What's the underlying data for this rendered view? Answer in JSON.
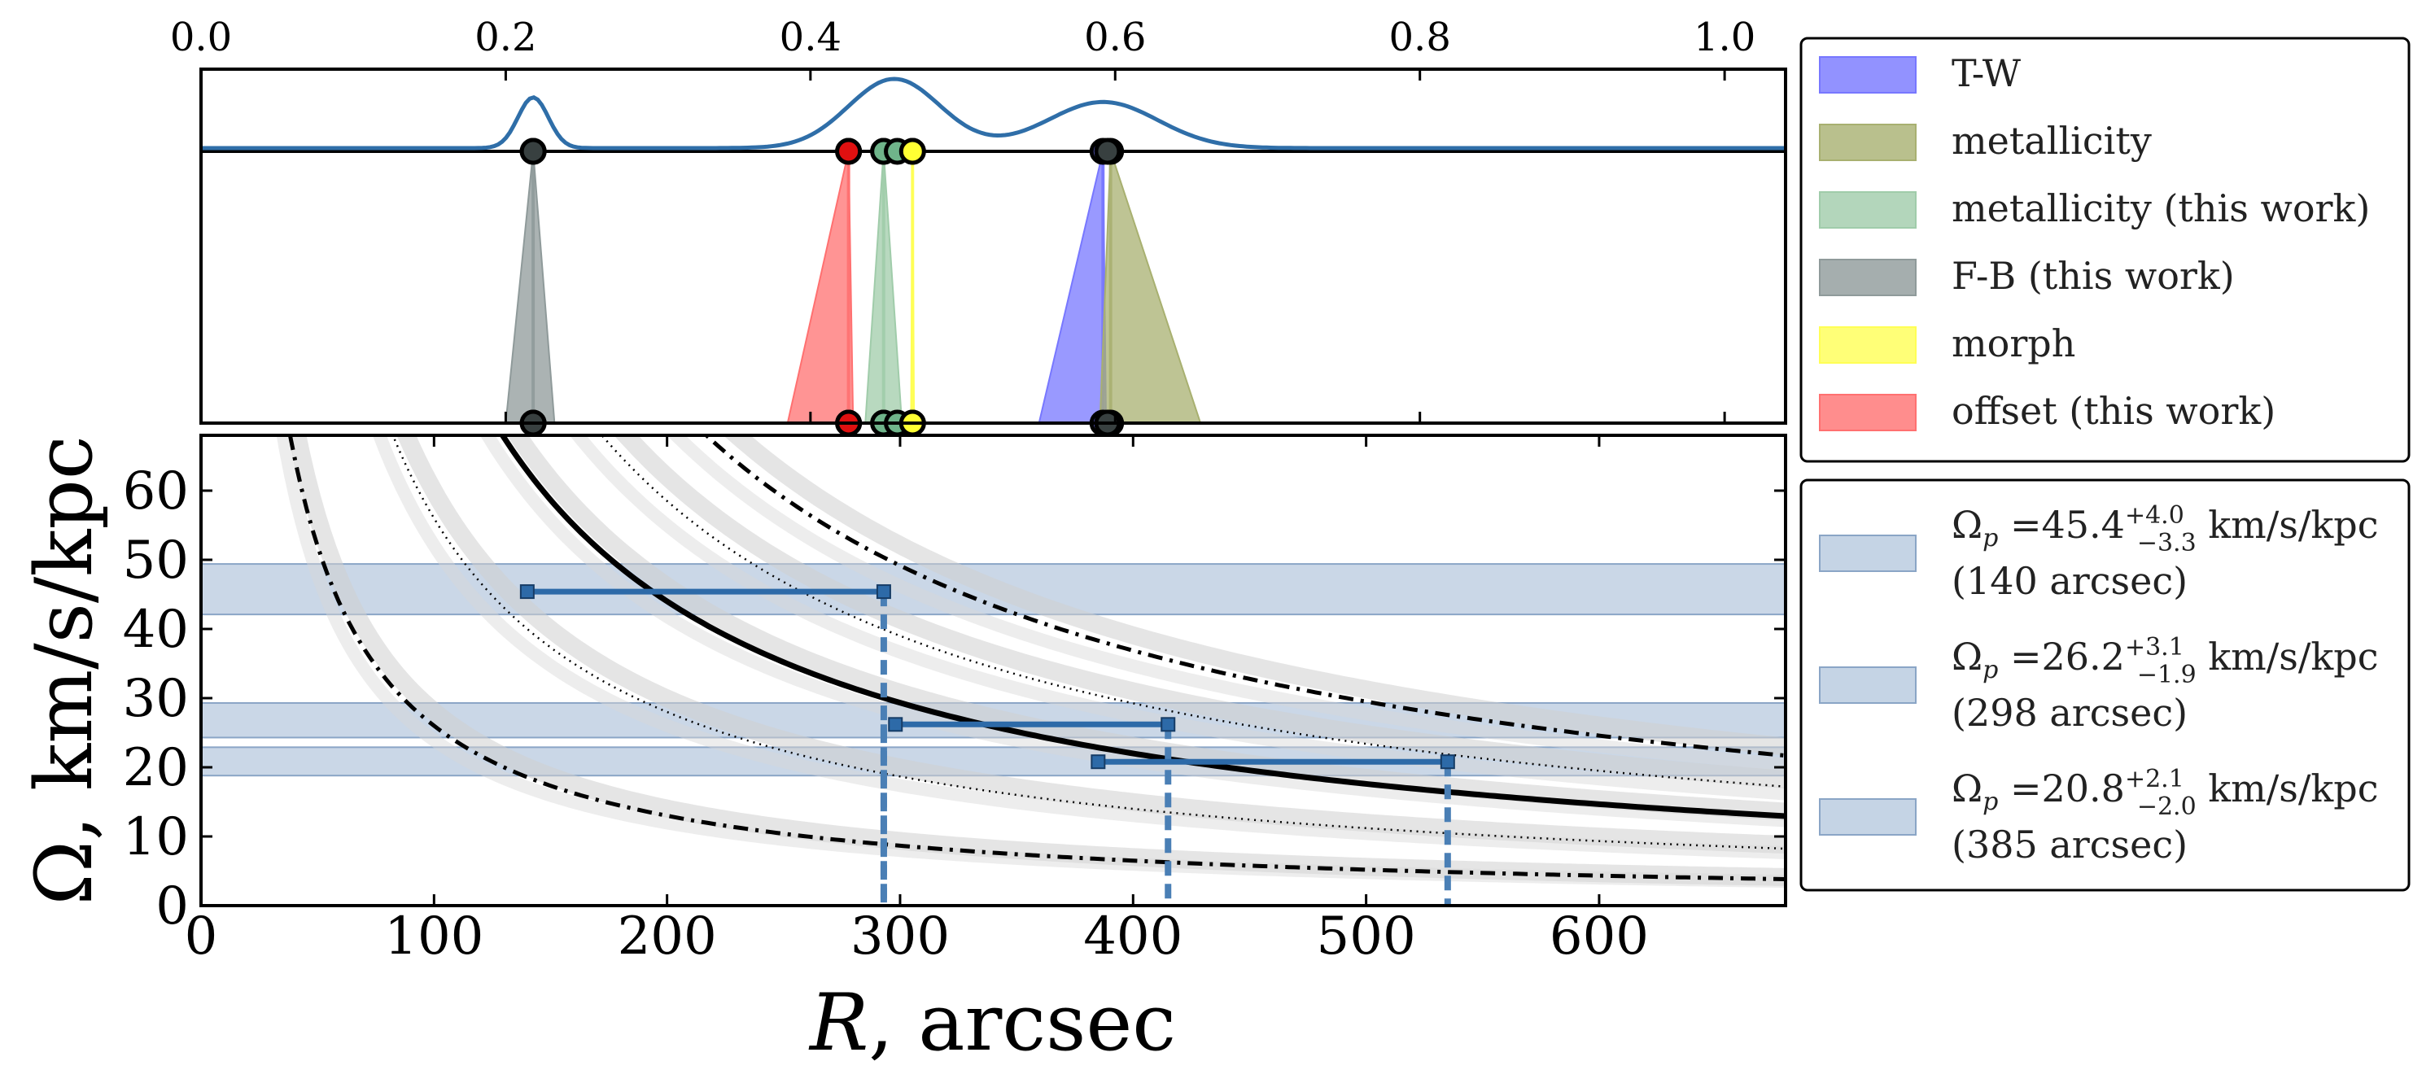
{
  "chart_data": [
    {
      "type": "area",
      "name": "corotation-radius-distributions",
      "x_ticks": [
        "0.0",
        "0.2",
        "0.4",
        "0.6",
        "0.8",
        "1.0"
      ],
      "x_tick_values": [
        0.0,
        0.2,
        0.4,
        0.6,
        0.8,
        1.0
      ],
      "xlim": [
        0.0,
        1.04
      ],
      "density_peaks": [
        {
          "center": 0.218,
          "height": 0.22,
          "width": 0.01
        },
        {
          "center": 0.455,
          "height": 0.3,
          "width": 0.03
        },
        {
          "center": 0.592,
          "height": 0.2,
          "width": 0.036
        }
      ],
      "density_color": "#2f6ea8",
      "series": [
        {
          "name": "T-W",
          "color": "#7777ff",
          "center": 0.592,
          "lo": 0.55,
          "hi": 0.594
        },
        {
          "name": "metallicity",
          "color": "#a8b070",
          "center": 0.597,
          "lo": 0.59,
          "hi": 0.656
        },
        {
          "name": "metallicity (this work)",
          "color": "#a0ccaa",
          "center": 0.448,
          "lo": 0.436,
          "hi": 0.46
        },
        {
          "name": "F-B (this work)",
          "color": "#8f9a9a",
          "center": 0.218,
          "lo": 0.2,
          "hi": 0.232
        },
        {
          "name": "morph",
          "color": "#ffff55",
          "center": 0.467,
          "lo": 0.466,
          "hi": 0.468
        },
        {
          "name": "offset (this work)",
          "color": "#ff7070",
          "center": 0.425,
          "lo": 0.385,
          "hi": 0.428
        }
      ],
      "extra_markers": [
        {
          "center": 0.218,
          "color": "#384040"
        },
        {
          "center": 0.595,
          "color": "#384040"
        },
        {
          "center": 0.425,
          "color": "#e01010"
        },
        {
          "center": 0.448,
          "color": "#6fb48a"
        },
        {
          "center": 0.457,
          "color": "#6fb48a"
        },
        {
          "center": 0.467,
          "color": "#ffff33"
        }
      ]
    },
    {
      "type": "line",
      "name": "rotation-curves",
      "xlabel_symbol": "R",
      "xlabel_rest": ", arcsec",
      "ylabel_symbol": "Ω",
      "ylabel_rest": ", km/s/kpc",
      "xlim": [
        0,
        680
      ],
      "ylim": [
        0,
        68
      ],
      "x_ticks": [
        "0",
        "100",
        "200",
        "300",
        "400",
        "500",
        "600"
      ],
      "x_tick_values": [
        0,
        100,
        200,
        300,
        400,
        500,
        600
      ],
      "y_ticks": [
        "0",
        "10",
        "20",
        "30",
        "40",
        "50",
        "60"
      ],
      "y_tick_values": [
        0,
        10,
        20,
        30,
        40,
        50,
        60
      ],
      "curves": [
        {
          "name": "Omega",
          "k": 8800,
          "style": "solid",
          "band": 0.05
        },
        {
          "name": "Omega + kappa/2",
          "k": 14750,
          "style": "dashdot",
          "band": 0.06
        },
        {
          "name": "Omega + kappa/4",
          "k": 11700,
          "style": "dotted",
          "band": 0.06
        },
        {
          "name": "Omega - kappa/4",
          "k": 5600,
          "style": "dotted",
          "band": 0.07
        },
        {
          "name": "Omega - kappa/2",
          "k": 2600,
          "style": "dashdot",
          "band": 0.08
        }
      ],
      "pattern_speeds": [
        {
          "omega": 45.4,
          "plus": "+4.0",
          "minus": "−3.3",
          "lo": 42.1,
          "hi": 49.4,
          "r": 140,
          "r_end": 293,
          "drop": [
            293
          ],
          "label_prefix": "Ω",
          "label_sub": "p",
          "label_eq": " =45.4",
          "label_unit": " km/s/kpc",
          "label_radius": "(140 arcsec)"
        },
        {
          "omega": 26.2,
          "plus": "+3.1",
          "minus": "−1.9",
          "lo": 24.3,
          "hi": 29.3,
          "r": 298,
          "r_end": 415,
          "drop": [
            293,
            415
          ],
          "label_prefix": "Ω",
          "label_sub": "p",
          "label_eq": " =26.2",
          "label_unit": " km/s/kpc",
          "label_radius": "(298 arcsec)"
        },
        {
          "omega": 20.8,
          "plus": "+2.1",
          "minus": "−2.0",
          "lo": 18.8,
          "hi": 22.9,
          "r": 385,
          "r_end": 535,
          "drop": [
            535
          ],
          "label_prefix": "Ω",
          "label_sub": "p",
          "label_eq": " =20.8",
          "label_unit": " km/s/kpc",
          "label_radius": "(385 arcsec)"
        }
      ],
      "band_color": "#9fb7d3",
      "marker_color": "#2d6aa8"
    }
  ]
}
